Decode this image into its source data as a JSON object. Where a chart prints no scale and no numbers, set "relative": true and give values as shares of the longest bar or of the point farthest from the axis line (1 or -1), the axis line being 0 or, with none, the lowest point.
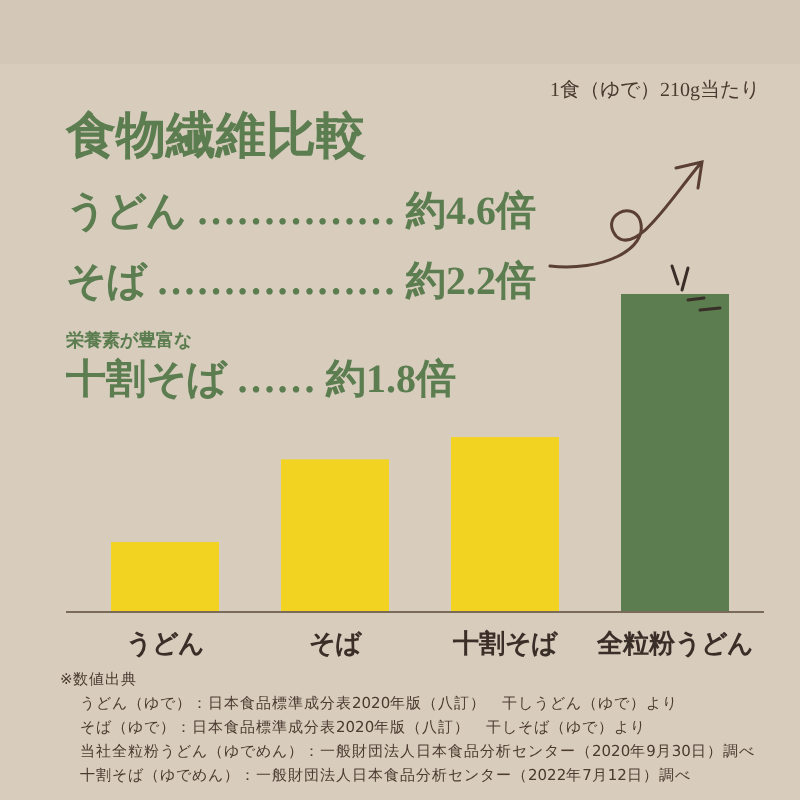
{
  "chart_data": {
    "type": "bar",
    "title": "食物繊維比較",
    "subtitle": "1食（ゆで）210g当たり",
    "relative": true,
    "categories": [
      "うどん",
      "そば",
      "十割そば",
      "全粒粉うどん"
    ],
    "values": [
      0.22,
      0.48,
      0.55,
      1
    ],
    "colors": [
      "#f2d322",
      "#f2d322",
      "#f2d322",
      "#5b7d50"
    ],
    "annotations": [
      "うどん …………… 約4.6倍",
      "そば ……………… 約2.2倍",
      "栄養素が豊富な",
      "十割そば …… 約1.8倍",
      "※数値出典",
      "うどん（ゆで）：日本食品標準成分表2020年版（八訂）　干しうどん（ゆで）より",
      "そば（ゆで）：日本食品標準成分表2020年版（八訂）　干しそば（ゆで）より",
      "当社全粒粉うどん（ゆでめん）：一般財団法人日本食品分析センター（2020年9月30日）調べ",
      "十割そば（ゆでめん）：一般財団法人日本食品分析センター（2022年7月12日）調べ"
    ]
  }
}
